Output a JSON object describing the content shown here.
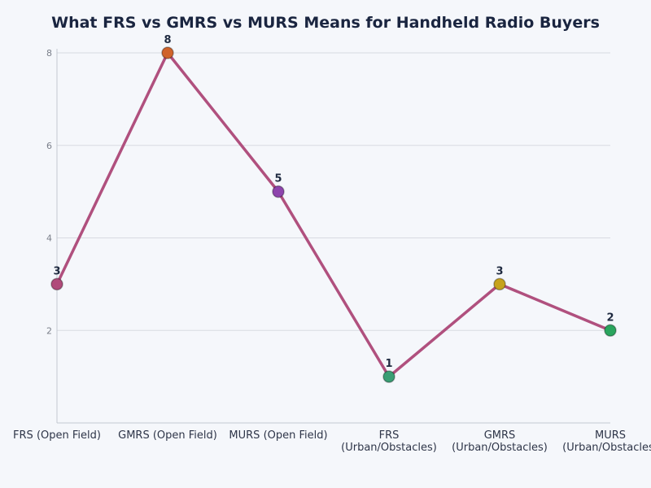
{
  "chart_data": {
    "type": "line",
    "title": "What FRS vs GMRS vs MURS Means for Handheld Radio Buyers",
    "xlabel": "",
    "ylabel": "",
    "categories": [
      [
        "FRS (Open Field)"
      ],
      [
        "GMRS (Open Field)"
      ],
      [
        "MURS (Open Field)"
      ],
      [
        "FRS",
        "(Urban/Obstacles)"
      ],
      [
        "GMRS",
        "(Urban/Obstacles)"
      ],
      [
        "MURS",
        "(Urban/Obstacles)"
      ]
    ],
    "values": [
      3,
      8,
      5,
      1,
      3,
      2
    ],
    "ylim": [
      0,
      8
    ],
    "yticks": [
      2,
      4,
      6,
      8
    ],
    "grid": true,
    "line_color": "#b0507e",
    "marker_colors": [
      "#b04a7a",
      "#d0642c",
      "#8e44ad",
      "#3a9e74",
      "#c6a21c",
      "#2aa55e"
    ]
  }
}
